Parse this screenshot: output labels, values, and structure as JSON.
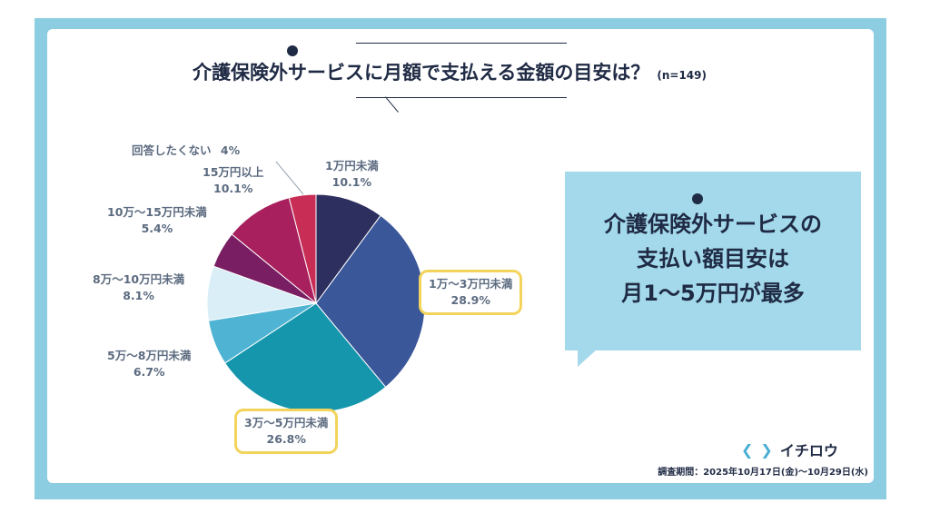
{
  "title": "介護保険外サービスに月額で支払える金額の目安は？",
  "sample_size": "(n=149)",
  "colors": {
    "frame": "#8dcde2",
    "highlight": "#f2d45c",
    "callout": "#a3d9ea",
    "text_dark": "#1f2a44"
  },
  "chart_data": {
    "type": "pie",
    "start_angle_deg": 0,
    "direction": "clockwise",
    "slices": [
      {
        "label": "1万円未満",
        "value": 10.1,
        "value_label": "10.1%",
        "color": "#2d2f5e",
        "highlight": false
      },
      {
        "label": "1万～3万円未満",
        "value": 28.9,
        "value_label": "28.9%",
        "color": "#3a579a",
        "highlight": true
      },
      {
        "label": "3万～5万円未満",
        "value": 26.8,
        "value_label": "26.8%",
        "color": "#1696ad",
        "highlight": true
      },
      {
        "label": "5万～8万円未満",
        "value": 6.7,
        "value_label": "6.7%",
        "color": "#4fb4d4",
        "highlight": false
      },
      {
        "label": "8万～10万円未満",
        "value": 8.1,
        "value_label": "8.1%",
        "color": "#d9eef6",
        "highlight": false
      },
      {
        "label": "10万～15万円未満",
        "value": 5.4,
        "value_label": "5.4%",
        "color": "#7a1e63",
        "highlight": false
      },
      {
        "label": "15万円以上",
        "value": 10.1,
        "value_label": "10.1%",
        "color": "#a8205e",
        "highlight": false
      },
      {
        "label": "回答したくない",
        "value": 4,
        "value_label": "4%",
        "color": "#c82d55",
        "highlight": false
      }
    ]
  },
  "callout": {
    "lines": [
      "介護保険外サービスの",
      "支払い額目安は",
      "月1～5万円が最多"
    ]
  },
  "brand": {
    "name": "イチロウ"
  },
  "survey_period": "調査期間：2025年10月17日(金)～10月29日(水)"
}
